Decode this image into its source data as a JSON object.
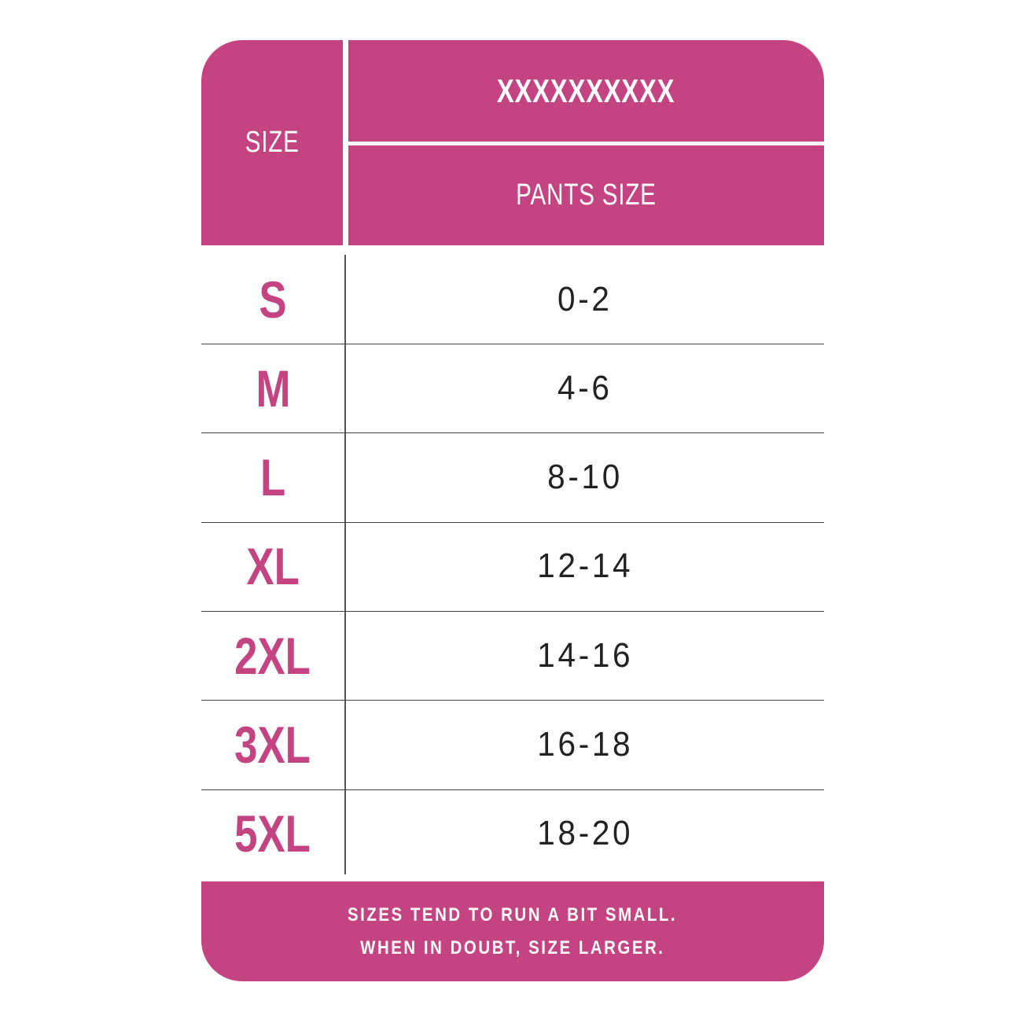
{
  "header": {
    "size_label": "SIZE",
    "title": "XXXXXXXXXX",
    "subtitle": "PANTS SIZE"
  },
  "rows": [
    {
      "size": "S",
      "pants": "0-2"
    },
    {
      "size": "M",
      "pants": "4-6"
    },
    {
      "size": "L",
      "pants": "8-10"
    },
    {
      "size": "XL",
      "pants": "12-14"
    },
    {
      "size": "2XL",
      "pants": "14-16"
    },
    {
      "size": "3XL",
      "pants": "16-18"
    },
    {
      "size": "5XL",
      "pants": "18-20"
    }
  ],
  "footer": {
    "line1": "SIZES TEND TO RUN A BIT SMALL.",
    "line2": "WHEN IN DOUBT, SIZE LARGER."
  },
  "colors": {
    "accent": "#C44482",
    "text": "#222222"
  }
}
